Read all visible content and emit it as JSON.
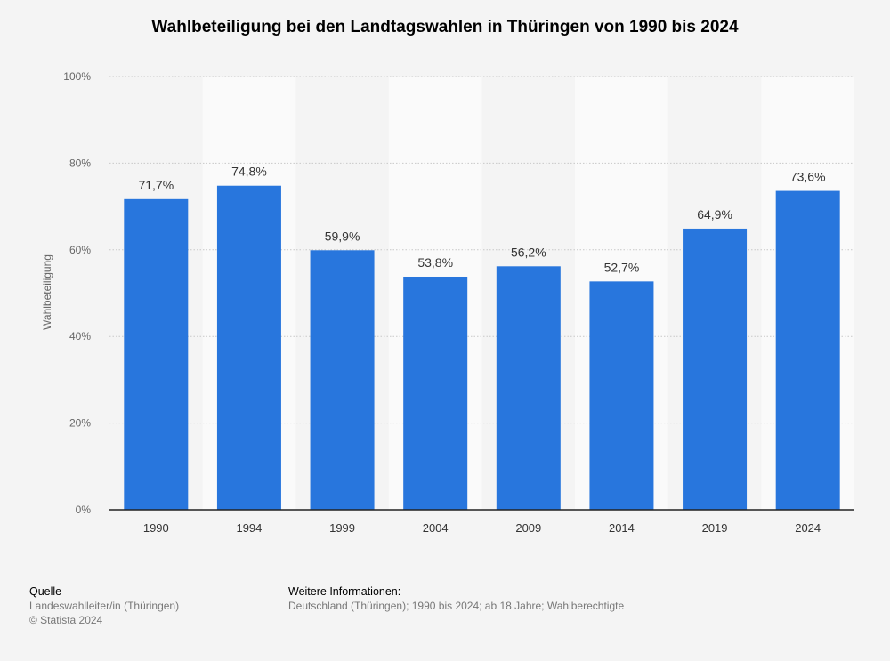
{
  "chart_data": {
    "type": "bar",
    "title": "Wahlbeteiligung bei den Landtagswahlen in Thüringen von 1990 bis 2024",
    "ylabel": "Wahlbeteiligung",
    "categories": [
      "1990",
      "1994",
      "1999",
      "2004",
      "2009",
      "2014",
      "2019",
      "2024"
    ],
    "values": [
      71.7,
      74.8,
      59.9,
      53.8,
      56.2,
      52.7,
      64.9,
      73.6
    ],
    "value_labels": [
      "71,7%",
      "74,8%",
      "59,9%",
      "53,8%",
      "56,2%",
      "52,7%",
      "64,9%",
      "73,6%"
    ],
    "ylim": [
      0,
      100
    ],
    "yticks": [
      0,
      20,
      40,
      60,
      80,
      100
    ],
    "ytick_labels": [
      "0%",
      "20%",
      "40%",
      "60%",
      "80%",
      "100%"
    ],
    "grid": true,
    "bar_color": "#2876dd"
  },
  "footer": {
    "source_heading": "Quelle",
    "source_text": "Landeswahlleiter/in (Thüringen)",
    "copyright": "© Statista 2024",
    "info_heading": "Weitere Informationen:",
    "info_text": "Deutschland (Thüringen); 1990 bis 2024; ab 18 Jahre; Wahlberechtigte"
  }
}
